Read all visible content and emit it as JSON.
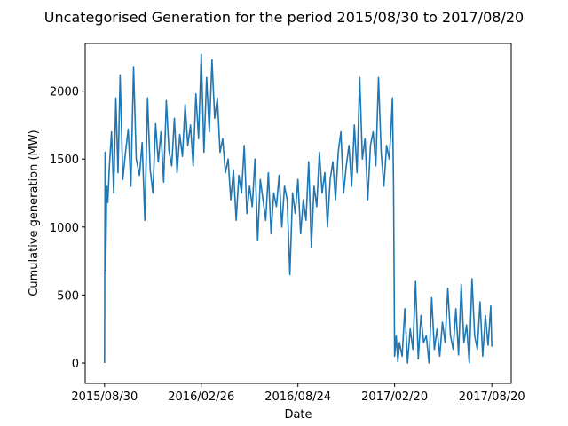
{
  "chart_data": {
    "type": "line",
    "title": "Uncategorised Generation for the period 2015/08/30 to 2017/08/20",
    "xlabel": "Date",
    "ylabel": "Cumulative generation (MW)",
    "xlim": [
      "2015/08/30",
      "2017/08/20"
    ],
    "ylim": [
      -150,
      2350
    ],
    "x_ticks": [
      "2015/08/30",
      "2016/02/26",
      "2016/08/24",
      "2017/02/20",
      "2017/08/20"
    ],
    "y_ticks": [
      0,
      500,
      1000,
      1500,
      2000
    ],
    "grid": false,
    "legend": "none",
    "series": [
      {
        "color": "#1f77b4",
        "x": [
          "2015/08/30",
          "2015/08/31",
          "2015/09/01",
          "2015/09/03",
          "2015/09/05",
          "2015/09/08",
          "2015/09/12",
          "2015/09/16",
          "2015/09/20",
          "2015/09/24",
          "2015/09/28",
          "2015/10/03",
          "2015/10/08",
          "2015/10/13",
          "2015/10/18",
          "2015/10/23",
          "2015/10/28",
          "2015/11/03",
          "2015/11/08",
          "2015/11/13",
          "2015/11/18",
          "2015/11/23",
          "2015/11/28",
          "2015/12/03",
          "2015/12/08",
          "2015/12/13",
          "2015/12/18",
          "2015/12/23",
          "2015/12/28",
          "2016/01/02",
          "2016/01/07",
          "2016/01/12",
          "2016/01/17",
          "2016/01/22",
          "2016/01/27",
          "2016/02/01",
          "2016/02/06",
          "2016/02/11",
          "2016/02/16",
          "2016/02/21",
          "2016/02/26",
          "2016/03/02",
          "2016/03/07",
          "2016/03/12",
          "2016/03/17",
          "2016/03/22",
          "2016/03/27",
          "2016/04/01",
          "2016/04/06",
          "2016/04/11",
          "2016/04/16",
          "2016/04/21",
          "2016/04/26",
          "2016/05/01",
          "2016/05/06",
          "2016/05/11",
          "2016/05/16",
          "2016/05/21",
          "2016/05/26",
          "2016/05/31",
          "2016/06/05",
          "2016/06/10",
          "2016/06/15",
          "2016/06/20",
          "2016/06/25",
          "2016/06/30",
          "2016/07/05",
          "2016/07/10",
          "2016/07/15",
          "2016/07/20",
          "2016/07/25",
          "2016/07/30",
          "2016/08/04",
          "2016/08/09",
          "2016/08/14",
          "2016/08/19",
          "2016/08/24",
          "2016/08/29",
          "2016/09/03",
          "2016/09/08",
          "2016/09/13",
          "2016/09/18",
          "2016/09/23",
          "2016/09/28",
          "2016/10/03",
          "2016/10/08",
          "2016/10/13",
          "2016/10/18",
          "2016/10/23",
          "2016/10/28",
          "2016/11/02",
          "2016/11/07",
          "2016/11/12",
          "2016/11/17",
          "2016/11/22",
          "2016/11/27",
          "2016/12/02",
          "2016/12/07",
          "2016/12/12",
          "2016/12/17",
          "2016/12/22",
          "2016/12/27",
          "2017/01/01",
          "2017/01/06",
          "2017/01/11",
          "2017/01/16",
          "2017/01/21",
          "2017/01/26",
          "2017/01/31",
          "2017/02/05",
          "2017/02/10",
          "2017/02/13",
          "2017/02/16",
          "2017/02/18",
          "2017/02/20",
          "2017/02/23",
          "2017/02/26",
          "2017/03/01",
          "2017/03/06",
          "2017/03/11",
          "2017/03/16",
          "2017/03/21",
          "2017/03/26",
          "2017/03/31",
          "2017/04/05",
          "2017/04/10",
          "2017/04/15",
          "2017/04/20",
          "2017/04/25",
          "2017/04/30",
          "2017/05/05",
          "2017/05/10",
          "2017/05/15",
          "2017/05/20",
          "2017/05/25",
          "2017/05/30",
          "2017/06/04",
          "2017/06/09",
          "2017/06/14",
          "2017/06/19",
          "2017/06/24",
          "2017/06/29",
          "2017/07/04",
          "2017/07/09",
          "2017/07/14",
          "2017/07/19",
          "2017/07/24",
          "2017/07/29",
          "2017/08/03",
          "2017/08/08",
          "2017/08/13",
          "2017/08/18",
          "2017/08/20"
        ],
        "y": [
          0,
          1550,
          680,
          1300,
          1180,
          1450,
          1700,
          1250,
          1950,
          1400,
          2120,
          1350,
          1550,
          1720,
          1300,
          2180,
          1500,
          1380,
          1620,
          1050,
          1950,
          1420,
          1250,
          1760,
          1480,
          1700,
          1330,
          1930,
          1560,
          1450,
          1800,
          1400,
          1680,
          1520,
          1900,
          1600,
          1750,
          1450,
          1980,
          1650,
          2270,
          1550,
          2100,
          1700,
          2230,
          1800,
          1950,
          1550,
          1650,
          1400,
          1500,
          1200,
          1420,
          1050,
          1380,
          1250,
          1600,
          1100,
          1300,
          1150,
          1500,
          900,
          1350,
          1200,
          1050,
          1400,
          950,
          1250,
          1150,
          1380,
          1000,
          1300,
          1200,
          650,
          1250,
          1100,
          1350,
          950,
          1200,
          1050,
          1480,
          850,
          1300,
          1150,
          1550,
          1250,
          1400,
          1000,
          1350,
          1480,
          1200,
          1550,
          1700,
          1250,
          1450,
          1600,
          1300,
          1750,
          1400,
          2100,
          1500,
          1650,
          1200,
          1600,
          1700,
          1450,
          2100,
          1550,
          1300,
          1600,
          1500,
          1700,
          1950,
          1300,
          50,
          200,
          10,
          150,
          50,
          400,
          0,
          250,
          100,
          600,
          30,
          350,
          150,
          200,
          0,
          480,
          100,
          250,
          50,
          300,
          150,
          550,
          200,
          100,
          400,
          60,
          580,
          150,
          280,
          0,
          620,
          200,
          100,
          450,
          50,
          350,
          130,
          420,
          120
        ]
      }
    ]
  }
}
